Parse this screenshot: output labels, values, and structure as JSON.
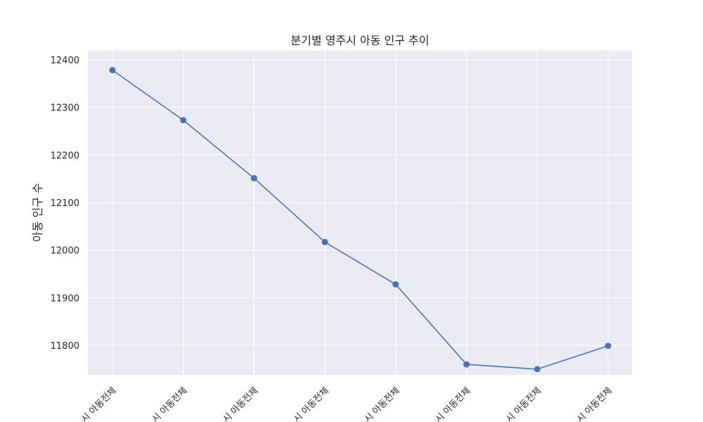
{
  "chart_data": {
    "type": "line",
    "title": "분기별 영주시 아동 인구 추이",
    "xlabel": "",
    "ylabel": "아동 인구 수",
    "categories": [
      "시 아동전체",
      "시 아동전체",
      "시 아동전체",
      "시 아동전체",
      "시 아동전체",
      "시 아동전체",
      "시 아동전체",
      "시 아동전체"
    ],
    "series": [
      {
        "values": [
          12378,
          12273,
          12151,
          12017,
          11928,
          11760,
          11750,
          11799
        ]
      }
    ],
    "yticks": [
      11800,
      11900,
      12000,
      12100,
      12200,
      12300,
      12400
    ],
    "ylim": [
      11738,
      12419
    ],
    "grid": true,
    "legend": "none",
    "colors": {
      "line": "#4c72b0",
      "plot_background": "#eaeaf2",
      "grid": "#ffffff",
      "text": "#262626"
    }
  }
}
